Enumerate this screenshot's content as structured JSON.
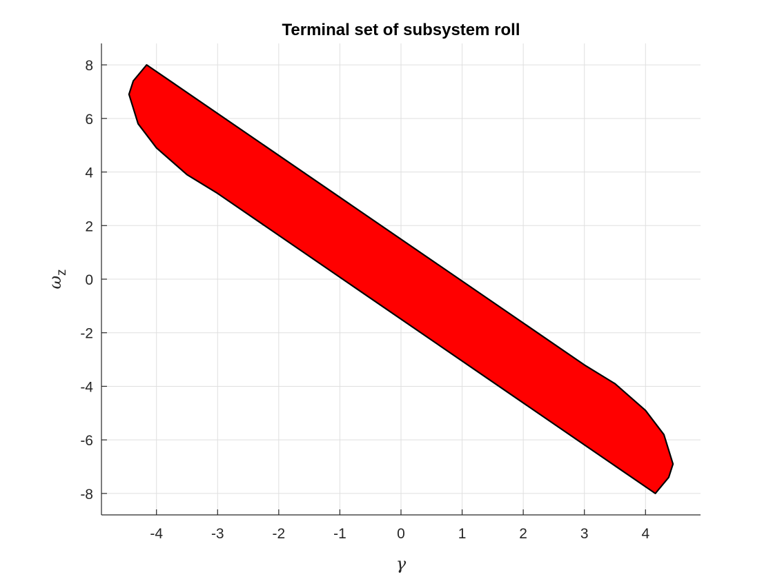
{
  "chart_data": {
    "type": "area",
    "title": "Terminal set of subsystem roll",
    "xlabel": "γ",
    "ylabel": "ω",
    "ylabel_subscript": "z",
    "xlim": [
      -4.9,
      4.9
    ],
    "ylim": [
      -8.8,
      8.8
    ],
    "xticks": [
      -4,
      -3,
      -2,
      -1,
      0,
      1,
      2,
      3,
      4
    ],
    "yticks": [
      -8,
      -6,
      -4,
      -2,
      0,
      2,
      4,
      6,
      8
    ],
    "grid": true,
    "fill_color": "#ff0000",
    "edge_color": "#000000",
    "series": [
      {
        "polygon": [
          [
            -4.16,
            8.0
          ],
          [
            3.0,
            -3.2
          ],
          [
            3.5,
            -3.9
          ],
          [
            4.0,
            -4.9
          ],
          [
            4.3,
            -5.8
          ],
          [
            4.45,
            -6.9
          ],
          [
            4.38,
            -7.4
          ],
          [
            4.16,
            -8.0
          ],
          [
            -3.0,
            3.2
          ],
          [
            -3.5,
            3.9
          ],
          [
            -4.0,
            4.9
          ],
          [
            -4.3,
            5.8
          ],
          [
            -4.45,
            6.9
          ],
          [
            -4.38,
            7.4
          ],
          [
            -4.16,
            8.0
          ]
        ]
      }
    ]
  }
}
